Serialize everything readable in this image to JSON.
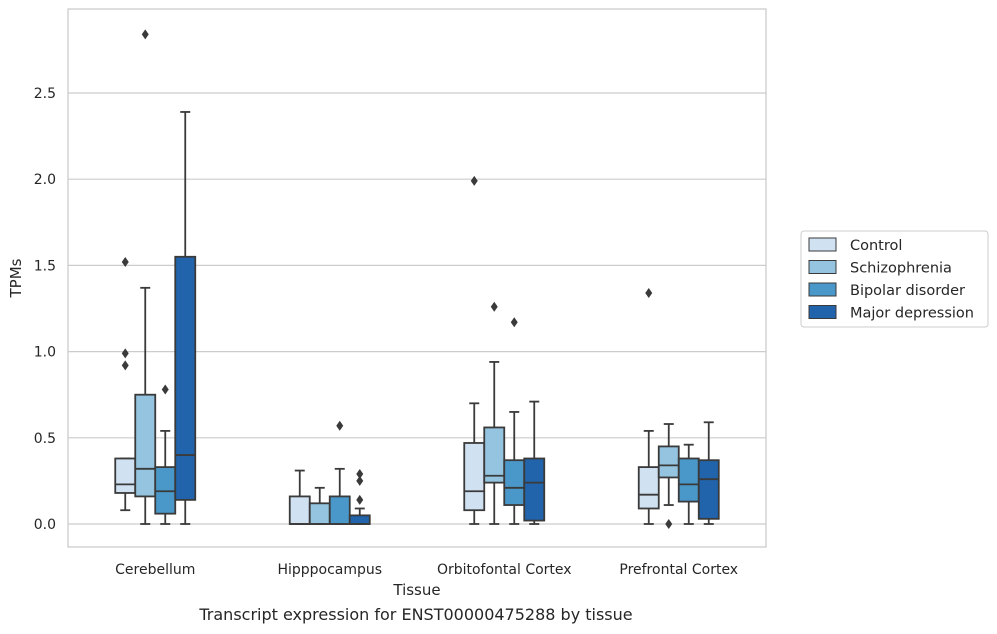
{
  "caption": "Transcript expression for ENST00000475288 by tissue",
  "chart_data": {
    "type": "box",
    "xlabel": "Tissue",
    "ylabel": "TPMs",
    "ylim": [
      -0.14,
      2.99
    ],
    "yticks": [
      0.0,
      0.5,
      1.0,
      1.5,
      2.0,
      2.5
    ],
    "ytick_labels": [
      "0.0",
      "0.5",
      "1.0",
      "1.5",
      "2.0",
      "2.5"
    ],
    "grid": "horizontal",
    "legend_position": "right",
    "categories": [
      "Cerebellum",
      "Hipppocampus",
      "Orbitofontal Cortex",
      "Prefrontal Cortex"
    ],
    "series": [
      {
        "name": "Control",
        "color": "#d0e1f2",
        "boxes": [
          {
            "whislo": 0.08,
            "q1": 0.18,
            "med": 0.23,
            "q3": 0.38,
            "whishi": 0.38,
            "fliers": [
              0.92,
              0.99,
              1.52
            ]
          },
          {
            "whislo": 0.0,
            "q1": 0.0,
            "med": 0.0,
            "q3": 0.16,
            "whishi": 0.31,
            "fliers": []
          },
          {
            "whislo": 0.0,
            "q1": 0.08,
            "med": 0.19,
            "q3": 0.47,
            "whishi": 0.7,
            "fliers": [
              1.99
            ]
          },
          {
            "whislo": 0.0,
            "q1": 0.09,
            "med": 0.17,
            "q3": 0.33,
            "whishi": 0.54,
            "fliers": [
              1.34
            ]
          }
        ]
      },
      {
        "name": "Schizophrenia",
        "color": "#94c4df",
        "boxes": [
          {
            "whislo": 0.0,
            "q1": 0.16,
            "med": 0.32,
            "q3": 0.75,
            "whishi": 1.37,
            "fliers": [
              2.84
            ]
          },
          {
            "whislo": 0.0,
            "q1": 0.0,
            "med": 0.0,
            "q3": 0.12,
            "whishi": 0.21,
            "fliers": []
          },
          {
            "whislo": 0.0,
            "q1": 0.24,
            "med": 0.28,
            "q3": 0.56,
            "whishi": 0.94,
            "fliers": [
              1.26
            ]
          },
          {
            "whislo": 0.11,
            "q1": 0.27,
            "med": 0.34,
            "q3": 0.45,
            "whishi": 0.58,
            "fliers": [
              0.0
            ]
          }
        ]
      },
      {
        "name": "Bipolar disorder",
        "color": "#4a98c9",
        "boxes": [
          {
            "whislo": 0.0,
            "q1": 0.06,
            "med": 0.19,
            "q3": 0.33,
            "whishi": 0.54,
            "fliers": [
              0.78
            ]
          },
          {
            "whislo": 0.0,
            "q1": 0.0,
            "med": 0.0,
            "q3": 0.16,
            "whishi": 0.32,
            "fliers": [
              0.57
            ]
          },
          {
            "whislo": 0.0,
            "q1": 0.11,
            "med": 0.21,
            "q3": 0.37,
            "whishi": 0.65,
            "fliers": [
              1.17
            ]
          },
          {
            "whislo": 0.0,
            "q1": 0.13,
            "med": 0.23,
            "q3": 0.38,
            "whishi": 0.46,
            "fliers": []
          }
        ]
      },
      {
        "name": "Major depression",
        "color": "#2164ab",
        "boxes": [
          {
            "whislo": 0.0,
            "q1": 0.14,
            "med": 0.4,
            "q3": 1.55,
            "whishi": 2.39,
            "fliers": []
          },
          {
            "whislo": 0.0,
            "q1": 0.0,
            "med": 0.0,
            "q3": 0.05,
            "whishi": 0.09,
            "fliers": [
              0.14,
              0.25,
              0.29
            ]
          },
          {
            "whislo": 0.0,
            "q1": 0.02,
            "med": 0.24,
            "q3": 0.38,
            "whishi": 0.71,
            "fliers": []
          },
          {
            "whislo": 0.0,
            "q1": 0.03,
            "med": 0.26,
            "q3": 0.37,
            "whishi": 0.59,
            "fliers": []
          }
        ]
      }
    ]
  }
}
